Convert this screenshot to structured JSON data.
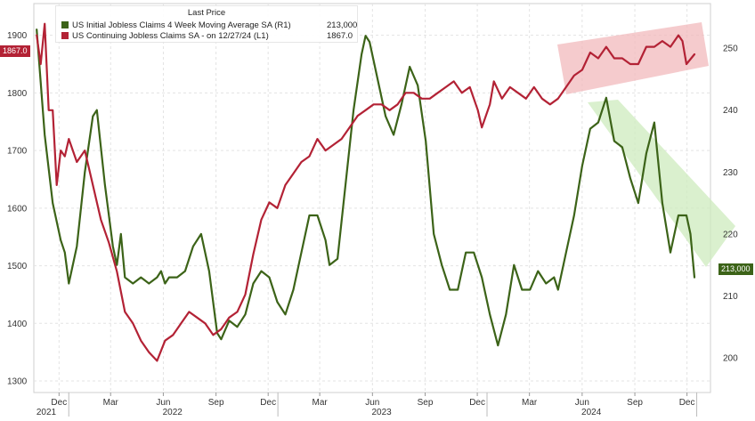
{
  "chart_data": {
    "type": "line",
    "legend_title": "Last Price",
    "legend_position": "top-left",
    "grid": true,
    "x_tick_labels": [
      "Dec",
      "Mar",
      "Jun",
      "Sep",
      "Dec",
      "Mar",
      "Jun",
      "Sep",
      "Dec",
      "Mar",
      "Jun",
      "Sep",
      "Dec"
    ],
    "x_tick_dates": [
      "2021-12-15",
      "2022-03-15",
      "2022-06-15",
      "2022-09-15",
      "2022-12-15",
      "2023-03-15",
      "2023-06-15",
      "2023-09-15",
      "2023-12-15",
      "2024-03-15",
      "2024-06-15",
      "2024-09-15",
      "2024-12-15"
    ],
    "x_year_labels": [
      "2021",
      "2022",
      "2023",
      "2024"
    ],
    "x_year_dates": [
      "2021-11-15",
      "2022-07-01",
      "2023-07-01",
      "2024-07-01"
    ],
    "xlim": [
      "2021-11-01",
      "2025-01-25"
    ],
    "y_left": {
      "ticks": [
        1300,
        1400,
        1500,
        1600,
        1700,
        1800,
        1900
      ],
      "lim": [
        1280,
        1955
      ]
    },
    "y_right": {
      "ticks": [
        200,
        210,
        220,
        230,
        240,
        250
      ],
      "lim": [
        194.4,
        257.2
      ]
    },
    "series": [
      {
        "name": "US Initial Jobless Claims 4 Week Moving Average SA",
        "axis_tag": "(R1)",
        "last_value": "213,000",
        "axis": "right",
        "color": "#3c6318",
        "points": [
          [
            "2021-11-06",
            253
          ],
          [
            "2021-11-20",
            236
          ],
          [
            "2021-12-04",
            225
          ],
          [
            "2021-12-18",
            219
          ],
          [
            "2021-12-25",
            217
          ],
          [
            "2022-01-01",
            212
          ],
          [
            "2022-01-15",
            218
          ],
          [
            "2022-01-29",
            230
          ],
          [
            "2022-02-12",
            239
          ],
          [
            "2022-02-19",
            240
          ],
          [
            "2022-03-05",
            228
          ],
          [
            "2022-03-19",
            218
          ],
          [
            "2022-03-26",
            215
          ],
          [
            "2022-04-02",
            220
          ],
          [
            "2022-04-09",
            213
          ],
          [
            "2022-04-23",
            212
          ],
          [
            "2022-05-07",
            213
          ],
          [
            "2022-05-21",
            212
          ],
          [
            "2022-06-04",
            213
          ],
          [
            "2022-06-11",
            214
          ],
          [
            "2022-06-18",
            212
          ],
          [
            "2022-06-25",
            213
          ],
          [
            "2022-07-09",
            213
          ],
          [
            "2022-07-23",
            214
          ],
          [
            "2022-08-06",
            218
          ],
          [
            "2022-08-20",
            220
          ],
          [
            "2022-09-03",
            214
          ],
          [
            "2022-09-17",
            204
          ],
          [
            "2022-09-24",
            203
          ],
          [
            "2022-10-08",
            206
          ],
          [
            "2022-10-22",
            205
          ],
          [
            "2022-11-05",
            207
          ],
          [
            "2022-11-19",
            212
          ],
          [
            "2022-12-03",
            214
          ],
          [
            "2022-12-17",
            213
          ],
          [
            "2022-12-31",
            209
          ],
          [
            "2023-01-14",
            207
          ],
          [
            "2023-01-28",
            211
          ],
          [
            "2023-02-11",
            217
          ],
          [
            "2023-02-25",
            223
          ],
          [
            "2023-03-11",
            223
          ],
          [
            "2023-03-25",
            219
          ],
          [
            "2023-04-01",
            215
          ],
          [
            "2023-04-15",
            216
          ],
          [
            "2023-04-29",
            228
          ],
          [
            "2023-05-13",
            240
          ],
          [
            "2023-05-27",
            249
          ],
          [
            "2023-06-03",
            252
          ],
          [
            "2023-06-10",
            251
          ],
          [
            "2023-06-24",
            245
          ],
          [
            "2023-07-08",
            239
          ],
          [
            "2023-07-22",
            236
          ],
          [
            "2023-08-05",
            241
          ],
          [
            "2023-08-19",
            247
          ],
          [
            "2023-09-02",
            244
          ],
          [
            "2023-09-16",
            235
          ],
          [
            "2023-09-30",
            220
          ],
          [
            "2023-10-14",
            215
          ],
          [
            "2023-10-28",
            211
          ],
          [
            "2023-11-11",
            211
          ],
          [
            "2023-11-25",
            217
          ],
          [
            "2023-12-09",
            217
          ],
          [
            "2023-12-23",
            213
          ],
          [
            "2024-01-06",
            207
          ],
          [
            "2024-01-20",
            202
          ],
          [
            "2024-02-03",
            207
          ],
          [
            "2024-02-17",
            215
          ],
          [
            "2024-03-02",
            211
          ],
          [
            "2024-03-16",
            211
          ],
          [
            "2024-03-30",
            214
          ],
          [
            "2024-04-13",
            212
          ],
          [
            "2024-04-27",
            213
          ],
          [
            "2024-05-04",
            211
          ],
          [
            "2024-05-18",
            217
          ],
          [
            "2024-06-01",
            223
          ],
          [
            "2024-06-15",
            231
          ],
          [
            "2024-06-29",
            237
          ],
          [
            "2024-07-13",
            238
          ],
          [
            "2024-07-27",
            242
          ],
          [
            "2024-08-10",
            235
          ],
          [
            "2024-08-24",
            234
          ],
          [
            "2024-09-07",
            229
          ],
          [
            "2024-09-21",
            225
          ],
          [
            "2024-10-05",
            233
          ],
          [
            "2024-10-19",
            238
          ],
          [
            "2024-11-02",
            225
          ],
          [
            "2024-11-16",
            217
          ],
          [
            "2024-11-30",
            223
          ],
          [
            "2024-12-14",
            223
          ],
          [
            "2024-12-21",
            220
          ],
          [
            "2024-12-28",
            213
          ]
        ]
      },
      {
        "name": "US Continuing Jobless Claims SA - on 12/27/24",
        "axis_tag": "(L1)",
        "last_value": "1867.0",
        "axis": "left",
        "color": "#b32235",
        "points": [
          [
            "2021-11-06",
            1900
          ],
          [
            "2021-11-13",
            1850
          ],
          [
            "2021-11-20",
            1920
          ],
          [
            "2021-11-27",
            1770
          ],
          [
            "2021-12-04",
            1770
          ],
          [
            "2021-12-11",
            1640
          ],
          [
            "2021-12-18",
            1700
          ],
          [
            "2021-12-25",
            1690
          ],
          [
            "2022-01-01",
            1720
          ],
          [
            "2022-01-15",
            1680
          ],
          [
            "2022-01-29",
            1700
          ],
          [
            "2022-02-12",
            1640
          ],
          [
            "2022-02-26",
            1580
          ],
          [
            "2022-03-12",
            1540
          ],
          [
            "2022-03-26",
            1490
          ],
          [
            "2022-04-09",
            1420
          ],
          [
            "2022-04-23",
            1400
          ],
          [
            "2022-05-07",
            1370
          ],
          [
            "2022-05-21",
            1350
          ],
          [
            "2022-06-04",
            1335
          ],
          [
            "2022-06-18",
            1370
          ],
          [
            "2022-07-02",
            1380
          ],
          [
            "2022-07-16",
            1400
          ],
          [
            "2022-07-30",
            1420
          ],
          [
            "2022-08-13",
            1410
          ],
          [
            "2022-08-27",
            1400
          ],
          [
            "2022-09-10",
            1380
          ],
          [
            "2022-09-24",
            1390
          ],
          [
            "2022-10-08",
            1410
          ],
          [
            "2022-10-22",
            1420
          ],
          [
            "2022-11-05",
            1450
          ],
          [
            "2022-11-19",
            1520
          ],
          [
            "2022-12-03",
            1580
          ],
          [
            "2022-12-17",
            1610
          ],
          [
            "2022-12-31",
            1600
          ],
          [
            "2023-01-14",
            1640
          ],
          [
            "2023-01-28",
            1660
          ],
          [
            "2023-02-11",
            1680
          ],
          [
            "2023-02-25",
            1690
          ],
          [
            "2023-03-11",
            1720
          ],
          [
            "2023-03-25",
            1700
          ],
          [
            "2023-04-08",
            1710
          ],
          [
            "2023-04-22",
            1720
          ],
          [
            "2023-05-06",
            1740
          ],
          [
            "2023-05-20",
            1760
          ],
          [
            "2023-06-03",
            1770
          ],
          [
            "2023-06-17",
            1780
          ],
          [
            "2023-07-01",
            1780
          ],
          [
            "2023-07-15",
            1770
          ],
          [
            "2023-07-29",
            1780
          ],
          [
            "2023-08-12",
            1800
          ],
          [
            "2023-08-26",
            1800
          ],
          [
            "2023-09-09",
            1790
          ],
          [
            "2023-09-23",
            1790
          ],
          [
            "2023-10-07",
            1800
          ],
          [
            "2023-10-21",
            1810
          ],
          [
            "2023-11-04",
            1820
          ],
          [
            "2023-11-18",
            1800
          ],
          [
            "2023-12-02",
            1810
          ],
          [
            "2023-12-16",
            1770
          ],
          [
            "2023-12-23",
            1740
          ],
          [
            "2024-01-06",
            1780
          ],
          [
            "2024-01-13",
            1820
          ],
          [
            "2024-01-27",
            1790
          ],
          [
            "2024-02-10",
            1810
          ],
          [
            "2024-02-24",
            1800
          ],
          [
            "2024-03-09",
            1790
          ],
          [
            "2024-03-23",
            1810
          ],
          [
            "2024-04-06",
            1790
          ],
          [
            "2024-04-20",
            1780
          ],
          [
            "2024-05-04",
            1790
          ],
          [
            "2024-05-18",
            1810
          ],
          [
            "2024-06-01",
            1830
          ],
          [
            "2024-06-15",
            1840
          ],
          [
            "2024-06-29",
            1870
          ],
          [
            "2024-07-13",
            1860
          ],
          [
            "2024-07-27",
            1880
          ],
          [
            "2024-08-10",
            1860
          ],
          [
            "2024-08-24",
            1860
          ],
          [
            "2024-09-07",
            1850
          ],
          [
            "2024-09-21",
            1850
          ],
          [
            "2024-10-05",
            1880
          ],
          [
            "2024-10-19",
            1880
          ],
          [
            "2024-11-02",
            1890
          ],
          [
            "2024-11-16",
            1880
          ],
          [
            "2024-11-30",
            1900
          ],
          [
            "2024-12-07",
            1890
          ],
          [
            "2024-12-14",
            1850
          ],
          [
            "2024-12-28",
            1867
          ]
        ]
      }
    ],
    "highlight_color_red": "#f2b9bc",
    "highlight_color_green": "#cdebbd"
  }
}
